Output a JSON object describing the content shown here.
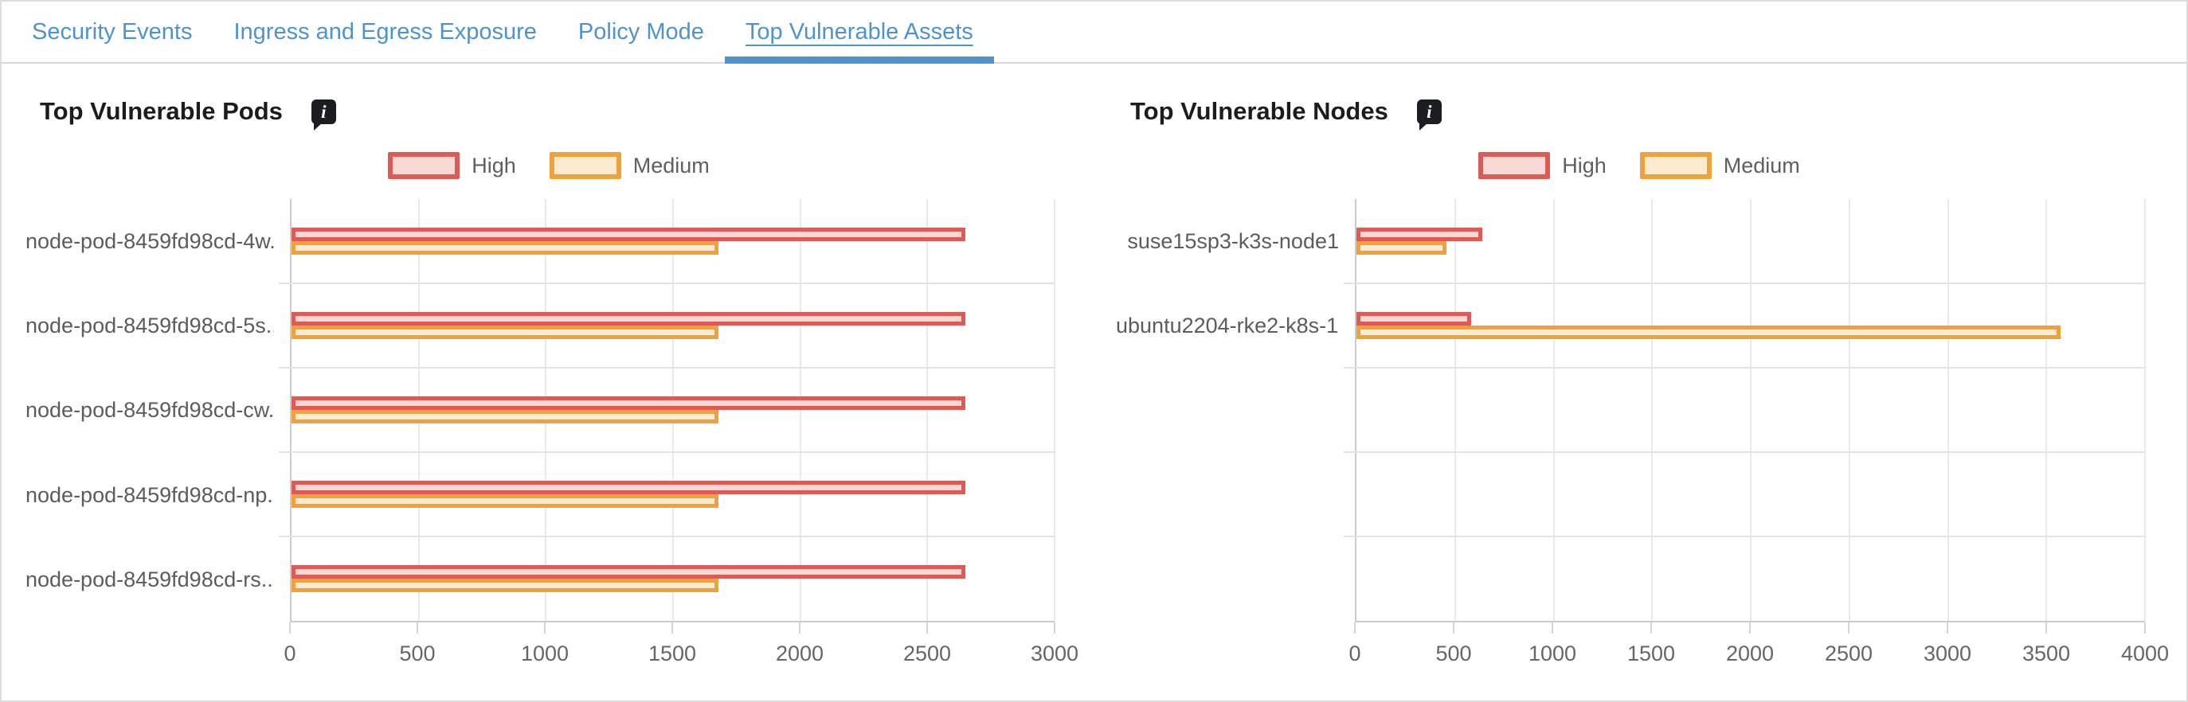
{
  "colors": {
    "tab_blue": "#4f93cd",
    "high_border": "#dc5b55",
    "high_fill": "#f7d8d5",
    "medium_border": "#f0a23a",
    "medium_fill": "#fcebcf"
  },
  "tabs": {
    "items": [
      {
        "label": "Security Events",
        "active": false
      },
      {
        "label": "Ingress and Egress Exposure",
        "active": false
      },
      {
        "label": "Policy Mode",
        "active": false
      },
      {
        "label": "Top Vulnerable Assets",
        "active": true
      }
    ]
  },
  "info_icon": {
    "glyph": "i"
  },
  "charts": [
    {
      "title": "Top Vulnerable Pods",
      "legend": [
        {
          "label": "High"
        },
        {
          "label": "Medium"
        }
      ],
      "chart_data": {
        "type": "bar",
        "orientation": "horizontal",
        "categories": [
          "node-pod-8459fd98cd-4w...",
          "node-pod-8459fd98cd-5s...",
          "node-pod-8459fd98cd-cw...",
          "node-pod-8459fd98cd-np...",
          "node-pod-8459fd98cd-rs..."
        ],
        "series": [
          {
            "name": "High",
            "values": [
              2650,
              2650,
              2650,
              2650,
              2650
            ]
          },
          {
            "name": "Medium",
            "values": [
              1680,
              1680,
              1680,
              1680,
              1680
            ]
          }
        ],
        "xlim": [
          0,
          3000
        ],
        "xticks": [
          0,
          500,
          1000,
          1500,
          2000,
          2500,
          3000
        ],
        "row_slots": 5,
        "grid": true,
        "legend_position": "top-center"
      }
    },
    {
      "title": "Top Vulnerable Nodes",
      "legend": [
        {
          "label": "High"
        },
        {
          "label": "Medium"
        }
      ],
      "chart_data": {
        "type": "bar",
        "orientation": "horizontal",
        "categories": [
          "suse15sp3-k3s-node1",
          "ubuntu2204-rke2-k8s-1...."
        ],
        "series": [
          {
            "name": "High",
            "values": [
              640,
              580
            ]
          },
          {
            "name": "Medium",
            "values": [
              455,
              3570
            ]
          }
        ],
        "xlim": [
          0,
          4000
        ],
        "xticks": [
          0,
          500,
          1000,
          1500,
          2000,
          2500,
          3000,
          3500,
          4000
        ],
        "row_slots": 5,
        "grid": true,
        "legend_position": "top-center"
      }
    }
  ]
}
